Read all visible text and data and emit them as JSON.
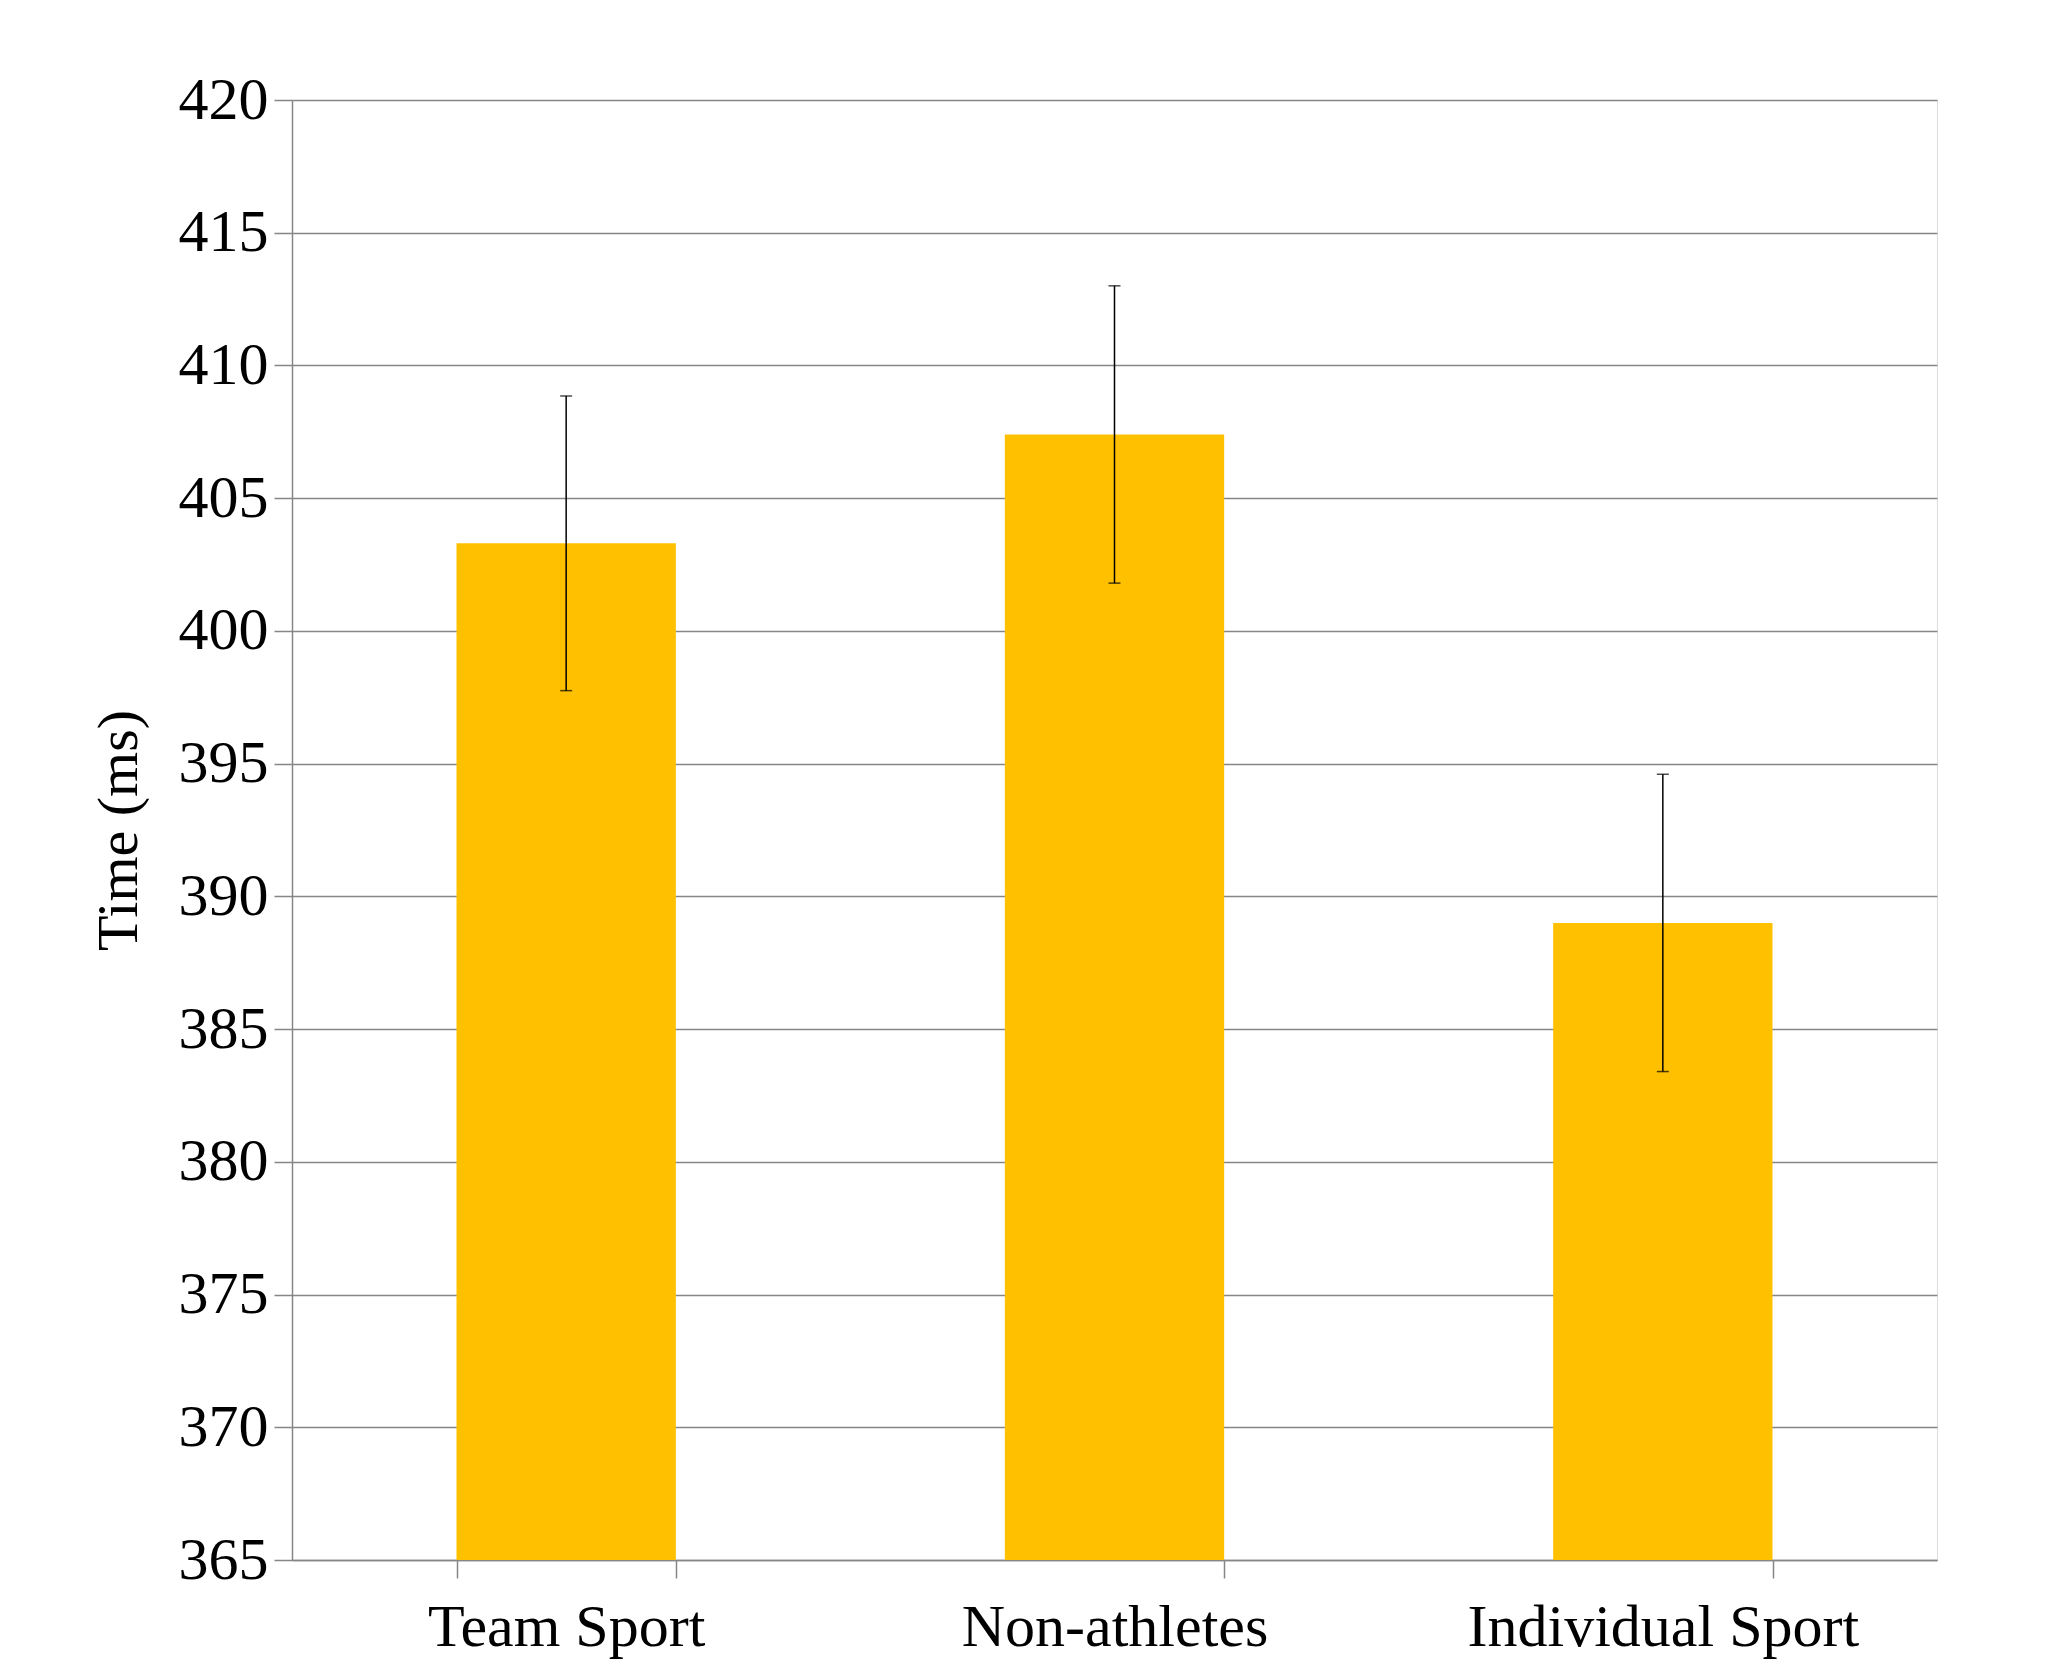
{
  "chart_data": {
    "type": "bar",
    "ylabel": "Time (ms)",
    "categories": [
      "Team Sport",
      "Non-athletes",
      "Individual Sport"
    ],
    "values": [
      403.3,
      407.4,
      389.0
    ],
    "errors": [
      5.55,
      5.6,
      5.6
    ],
    "color": "#ffc000",
    "ylim": [
      365,
      420
    ],
    "yticks": [
      365,
      370,
      375,
      380,
      385,
      390,
      395,
      400,
      405,
      410,
      415,
      420
    ],
    "grid": "y"
  }
}
